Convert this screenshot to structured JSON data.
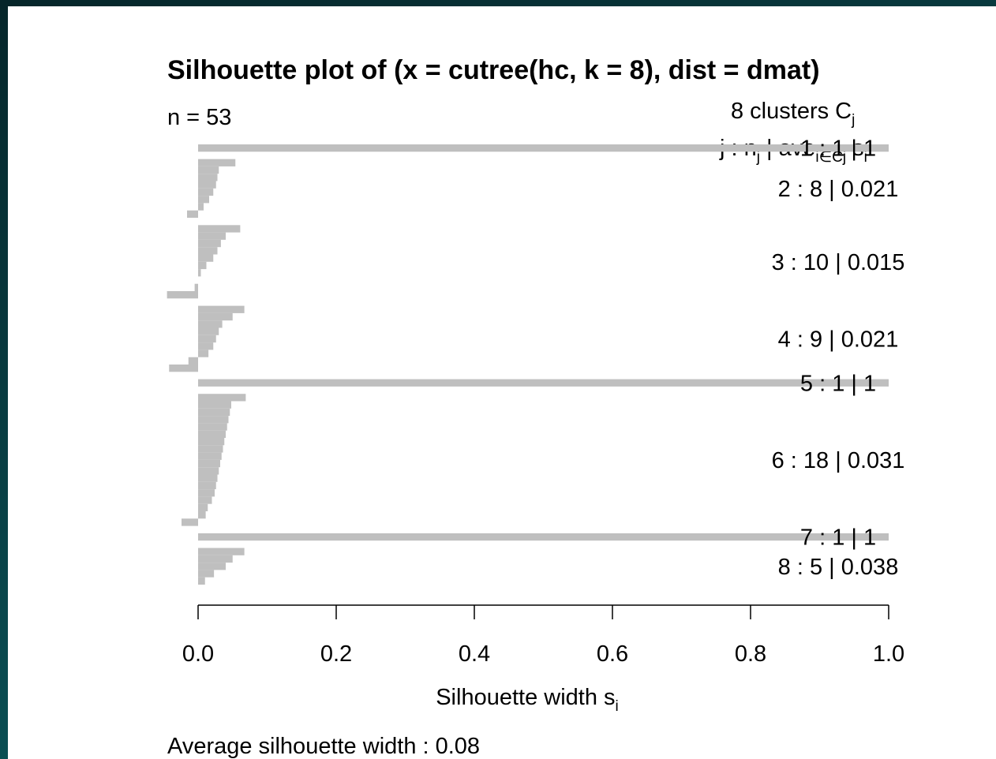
{
  "chart_data": {
    "type": "bar",
    "orientation": "horizontal",
    "title": "Silhouette plot of (x = cutree(hc, k = 8), dist = dmat)",
    "n_label": "n = 53",
    "legend_title": {
      "text": "8  clusters  C",
      "sub": "j"
    },
    "legend_header": [
      {
        "text": "j :  n"
      },
      {
        "text": "j",
        "sub": true
      },
      {
        "text": " | ave"
      },
      {
        "text": "i∈Cj",
        "sub": true
      },
      {
        "text": " s"
      },
      {
        "text": "i",
        "sub": true
      }
    ],
    "color": "#bfbfbf",
    "clusters": [
      {
        "label": "1 :   1  |  1",
        "values": [
          1
        ]
      },
      {
        "label": "2 :   8  |  0.021",
        "values": [
          0.054,
          0.03,
          0.028,
          0.026,
          0.022,
          0.016,
          0.008,
          -0.016
        ]
      },
      {
        "label": "3 :   10  |  0.015",
        "values": [
          0.061,
          0.04,
          0.033,
          0.028,
          0.022,
          0.012,
          0.004,
          0,
          -0.005,
          -0.045
        ]
      },
      {
        "label": "4 :   9  |  0.021",
        "values": [
          0.067,
          0.05,
          0.035,
          0.03,
          0.026,
          0.022,
          0.015,
          -0.014,
          -0.042
        ]
      },
      {
        "label": "5 :   1  |  1",
        "values": [
          1
        ]
      },
      {
        "label": "6 :   18  |  0.031",
        "values": [
          0.069,
          0.048,
          0.046,
          0.044,
          0.042,
          0.04,
          0.038,
          0.036,
          0.034,
          0.032,
          0.03,
          0.028,
          0.026,
          0.024,
          0.02,
          0.014,
          0.011,
          -0.024
        ]
      },
      {
        "label": "7 :   1  |  1",
        "values": [
          1
        ]
      },
      {
        "label": "8 :   5  |  0.038",
        "values": [
          0.067,
          0.05,
          0.04,
          0.023,
          0.01
        ]
      }
    ],
    "xlim": [
      0,
      1
    ],
    "xticks": [
      {
        "value": 0,
        "label": "0.0"
      },
      {
        "value": 0.2,
        "label": "0.2"
      },
      {
        "value": 0.4,
        "label": "0.4"
      },
      {
        "value": 0.6,
        "label": "0.6"
      },
      {
        "value": 0.8,
        "label": "0.8"
      },
      {
        "value": 1,
        "label": "1.0"
      }
    ],
    "xlabel": {
      "text": "Silhouette width s",
      "sub": "i"
    },
    "footer": "Average silhouette width :  0.08"
  }
}
